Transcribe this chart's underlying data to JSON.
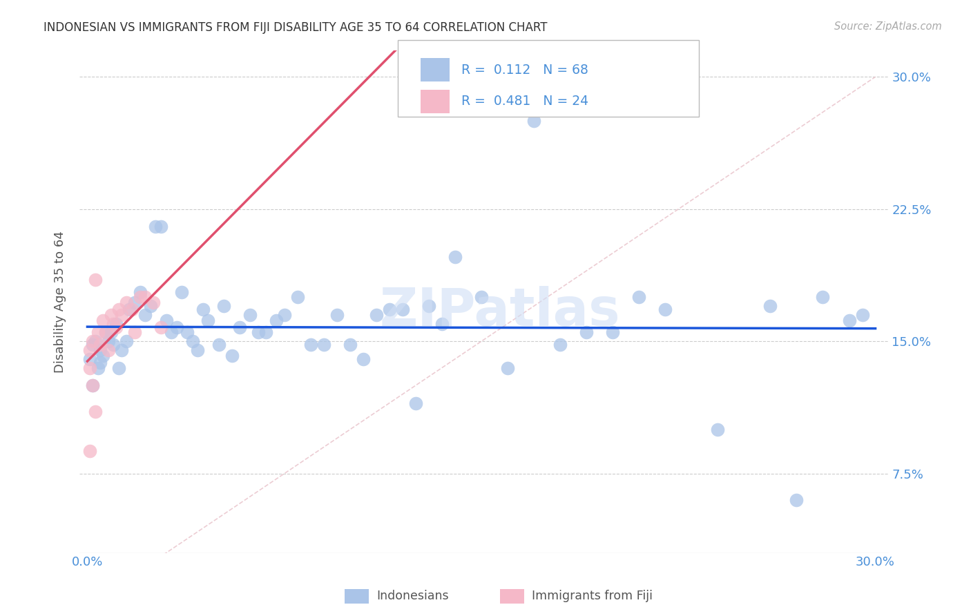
{
  "title": "INDONESIAN VS IMMIGRANTS FROM FIJI DISABILITY AGE 35 TO 64 CORRELATION CHART",
  "source": "Source: ZipAtlas.com",
  "ylabel": "Disability Age 35 to 64",
  "xlim": [
    0.0,
    0.3
  ],
  "ylim": [
    0.0,
    0.3
  ],
  "legend_label_1": "Indonesians",
  "legend_label_2": "Immigrants from Fiji",
  "R1": "0.112",
  "N1": "68",
  "R2": "0.481",
  "N2": "24",
  "color_blue": "#aac4e8",
  "color_pink": "#f5b8c8",
  "line_color_blue": "#1a56db",
  "line_color_pink": "#e0506e",
  "diag_color": "#e8c0c8",
  "title_color": "#333333",
  "axis_label_color": "#4a90d9",
  "source_color": "#aaaaaa",
  "ylabel_color": "#555555",
  "watermark": "ZIPatlas",
  "watermark_color": "#d0dff5",
  "grid_color": "#cccccc",
  "indonesians_x": [
    0.001,
    0.002,
    0.002,
    0.003,
    0.004,
    0.005,
    0.005,
    0.006,
    0.007,
    0.008,
    0.009,
    0.01,
    0.011,
    0.012,
    0.013,
    0.015,
    0.016,
    0.018,
    0.02,
    0.022,
    0.024,
    0.026,
    0.028,
    0.03,
    0.032,
    0.034,
    0.036,
    0.038,
    0.04,
    0.042,
    0.044,
    0.046,
    0.05,
    0.052,
    0.055,
    0.058,
    0.062,
    0.065,
    0.068,
    0.072,
    0.075,
    0.08,
    0.085,
    0.09,
    0.095,
    0.1,
    0.105,
    0.11,
    0.115,
    0.12,
    0.125,
    0.13,
    0.135,
    0.14,
    0.15,
    0.16,
    0.17,
    0.18,
    0.19,
    0.2,
    0.21,
    0.22,
    0.24,
    0.26,
    0.27,
    0.28,
    0.29,
    0.295
  ],
  "indonesians_y": [
    0.14,
    0.148,
    0.125,
    0.15,
    0.135,
    0.138,
    0.145,
    0.142,
    0.155,
    0.15,
    0.155,
    0.148,
    0.16,
    0.135,
    0.145,
    0.15,
    0.168,
    0.172,
    0.178,
    0.165,
    0.17,
    0.215,
    0.215,
    0.162,
    0.155,
    0.158,
    0.178,
    0.155,
    0.15,
    0.145,
    0.168,
    0.162,
    0.148,
    0.17,
    0.142,
    0.158,
    0.165,
    0.155,
    0.155,
    0.162,
    0.165,
    0.175,
    0.148,
    0.148,
    0.165,
    0.148,
    0.14,
    0.165,
    0.168,
    0.168,
    0.115,
    0.17,
    0.16,
    0.198,
    0.175,
    0.135,
    0.275,
    0.148,
    0.155,
    0.155,
    0.175,
    0.168,
    0.1,
    0.17,
    0.06,
    0.175,
    0.162,
    0.165
  ],
  "fiji_x": [
    0.001,
    0.001,
    0.002,
    0.002,
    0.003,
    0.003,
    0.004,
    0.005,
    0.006,
    0.007,
    0.008,
    0.009,
    0.01,
    0.011,
    0.012,
    0.013,
    0.015,
    0.017,
    0.018,
    0.02,
    0.022,
    0.025,
    0.028,
    0.001
  ],
  "fiji_y": [
    0.135,
    0.145,
    0.125,
    0.15,
    0.185,
    0.11,
    0.155,
    0.148,
    0.162,
    0.155,
    0.145,
    0.165,
    0.16,
    0.158,
    0.168,
    0.165,
    0.172,
    0.168,
    0.155,
    0.175,
    0.175,
    0.172,
    0.158,
    0.088
  ]
}
